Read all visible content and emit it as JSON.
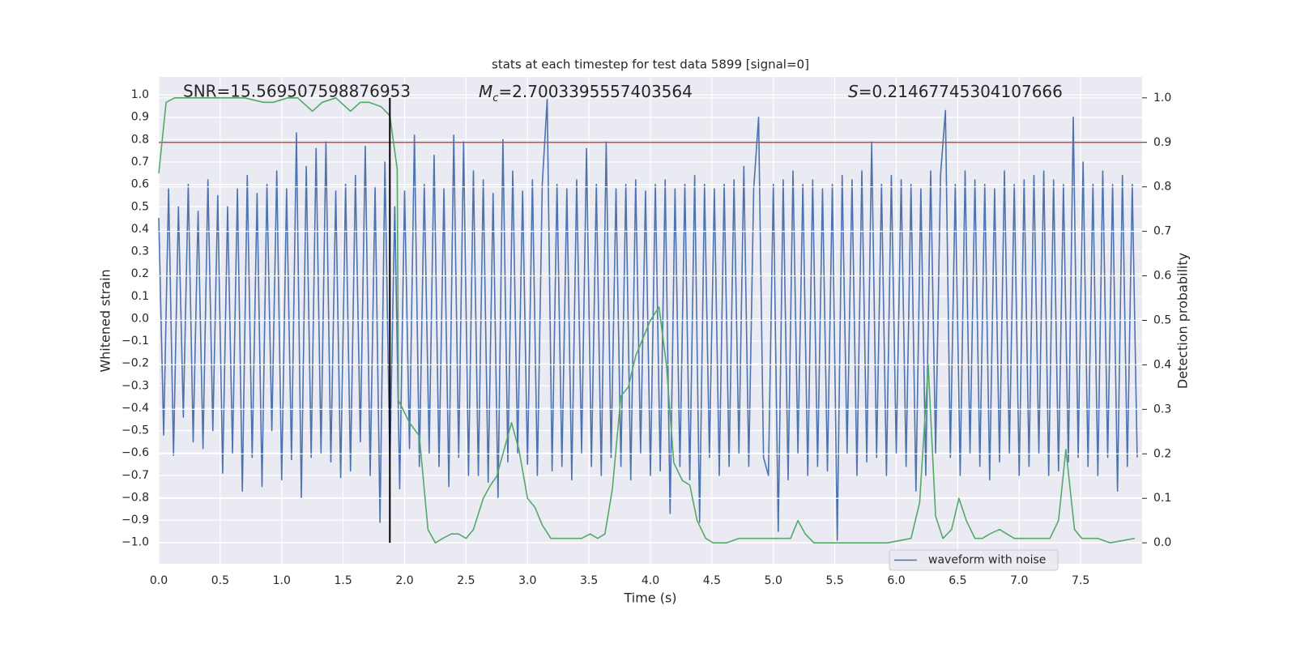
{
  "chart_data": {
    "type": "line",
    "title": "stats at each timestep for test data 5899 [signal=0]",
    "xlabel": "Time (s)",
    "ylabel": "Whitened strain",
    "y2label": "Detection probability",
    "annotations": [
      {
        "text": "SNR=15.569507598876953"
      },
      {
        "symbol": "M",
        "subscript": "c",
        "text": "=2.7003395557403564"
      },
      {
        "symbol": "S",
        "text": "=0.21467745304107666"
      }
    ],
    "xlim": [
      0,
      8.0
    ],
    "ylim": [
      -1.095,
      1.08
    ],
    "y2lim": [
      -0.047,
      1.047
    ],
    "xticks": [
      {
        "value": 0,
        "label": "0.0"
      },
      {
        "value": 0.5,
        "label": "0.5"
      },
      {
        "value": 1,
        "label": "1.0"
      },
      {
        "value": 1.5,
        "label": "1.5"
      },
      {
        "value": 2,
        "label": "2.0"
      },
      {
        "value": 2.5,
        "label": "2.5"
      },
      {
        "value": 3,
        "label": "3.0"
      },
      {
        "value": 3.5,
        "label": "3.5"
      },
      {
        "value": 4,
        "label": "4.0"
      },
      {
        "value": 4.5,
        "label": "4.5"
      },
      {
        "value": 5,
        "label": "5.0"
      },
      {
        "value": 5.5,
        "label": "5.5"
      },
      {
        "value": 6,
        "label": "6.0"
      },
      {
        "value": 6.5,
        "label": "6.5"
      },
      {
        "value": 7,
        "label": "7.0"
      },
      {
        "value": 7.5,
        "label": "7.5"
      }
    ],
    "yticks": [
      {
        "value": -1,
        "label": "−1.0"
      },
      {
        "value": -0.9,
        "label": "−0.9"
      },
      {
        "value": -0.8,
        "label": "−0.8"
      },
      {
        "value": -0.7,
        "label": "−0.7"
      },
      {
        "value": -0.6,
        "label": "−0.6"
      },
      {
        "value": -0.5,
        "label": "−0.5"
      },
      {
        "value": -0.4,
        "label": "−0.4"
      },
      {
        "value": -0.3,
        "label": "−0.3"
      },
      {
        "value": -0.2,
        "label": "−0.2"
      },
      {
        "value": -0.1,
        "label": "−0.1"
      },
      {
        "value": 0,
        "label": "0.0"
      },
      {
        "value": 0.1,
        "label": "0.1"
      },
      {
        "value": 0.2,
        "label": "0.2"
      },
      {
        "value": 0.3,
        "label": "0.3"
      },
      {
        "value": 0.4,
        "label": "0.4"
      },
      {
        "value": 0.5,
        "label": "0.5"
      },
      {
        "value": 0.6,
        "label": "0.6"
      },
      {
        "value": 0.7,
        "label": "0.7"
      },
      {
        "value": 0.8,
        "label": "0.8"
      },
      {
        "value": 0.9,
        "label": "0.9"
      },
      {
        "value": 1,
        "label": "1.0"
      }
    ],
    "y2ticks": [
      {
        "value": 0,
        "label": "0.0"
      },
      {
        "value": 0.1,
        "label": "0.1"
      },
      {
        "value": 0.2,
        "label": "0.2"
      },
      {
        "value": 0.3,
        "label": "0.3"
      },
      {
        "value": 0.4,
        "label": "0.4"
      },
      {
        "value": 0.5,
        "label": "0.5"
      },
      {
        "value": 0.6,
        "label": "0.6"
      },
      {
        "value": 0.7,
        "label": "0.7"
      },
      {
        "value": 0.8,
        "label": "0.8"
      },
      {
        "value": 0.9,
        "label": "0.9"
      },
      {
        "value": 1,
        "label": "1.0"
      }
    ],
    "grid": true,
    "legend": "lower right",
    "series": [
      {
        "name": "waveform with noise",
        "color": "#4c72b0",
        "x": [
          0,
          0.04,
          0.08,
          0.12,
          0.16,
          0.2,
          0.24,
          0.28,
          0.32,
          0.36,
          0.4,
          0.44,
          0.48,
          0.52,
          0.56,
          0.6,
          0.64,
          0.68,
          0.72,
          0.76,
          0.8,
          0.84,
          0.88,
          0.92,
          0.96,
          1,
          1.04,
          1.08,
          1.12,
          1.16,
          1.2,
          1.24,
          1.28,
          1.32,
          1.36,
          1.4,
          1.44,
          1.48,
          1.52,
          1.56,
          1.6,
          1.64,
          1.68,
          1.72,
          1.76,
          1.8,
          1.84,
          1.88,
          1.92,
          1.96,
          2,
          2.04,
          2.08,
          2.12,
          2.16,
          2.2,
          2.24,
          2.28,
          2.32,
          2.36,
          2.4,
          2.44,
          2.48,
          2.52,
          2.56,
          2.6,
          2.64,
          2.68,
          2.72,
          2.76,
          2.8,
          2.84,
          2.88,
          2.92,
          2.96,
          3,
          3.04,
          3.08,
          3.12,
          3.16,
          3.2,
          3.24,
          3.28,
          3.32,
          3.36,
          3.4,
          3.44,
          3.48,
          3.52,
          3.56,
          3.6,
          3.64,
          3.68,
          3.72,
          3.76,
          3.8,
          3.84,
          3.88,
          3.92,
          3.96,
          4,
          4.04,
          4.08,
          4.12,
          4.16,
          4.2,
          4.24,
          4.28,
          4.32,
          4.36,
          4.4,
          4.44,
          4.48,
          4.52,
          4.56,
          4.6,
          4.64,
          4.68,
          4.72,
          4.76,
          4.8,
          4.84,
          4.88,
          4.92,
          4.96,
          5,
          5.04,
          5.08,
          5.12,
          5.16,
          5.2,
          5.24,
          5.28,
          5.32,
          5.36,
          5.4,
          5.44,
          5.48,
          5.52,
          5.56,
          5.6,
          5.64,
          5.68,
          5.72,
          5.76,
          5.8,
          5.84,
          5.88,
          5.92,
          5.96,
          6,
          6.04,
          6.08,
          6.12,
          6.16,
          6.2,
          6.24,
          6.28,
          6.32,
          6.36,
          6.4,
          6.44,
          6.48,
          6.52,
          6.56,
          6.6,
          6.64,
          6.68,
          6.72,
          6.76,
          6.8,
          6.84,
          6.88,
          6.92,
          6.96,
          7,
          7.04,
          7.08,
          7.12,
          7.16,
          7.2,
          7.24,
          7.28,
          7.32,
          7.36,
          7.4,
          7.44,
          7.48,
          7.52,
          7.56,
          7.6,
          7.64,
          7.68,
          7.72,
          7.76,
          7.8,
          7.84,
          7.88,
          7.92,
          7.96
        ],
        "values": [
          0.45,
          -0.52,
          0.58,
          -0.61,
          0.5,
          -0.44,
          0.6,
          -0.55,
          0.48,
          -0.58,
          0.62,
          -0.5,
          0.55,
          -0.69,
          0.5,
          -0.6,
          0.58,
          -0.77,
          0.64,
          -0.62,
          0.56,
          -0.75,
          0.6,
          -0.5,
          0.66,
          -0.72,
          0.58,
          -0.63,
          0.83,
          -0.8,
          0.68,
          -0.62,
          0.76,
          -0.6,
          0.79,
          -0.64,
          0.57,
          -0.71,
          0.6,
          -0.68,
          0.64,
          -0.55,
          0.77,
          -0.7,
          0.59,
          -0.91,
          0.7,
          -0.65,
          0.5,
          -0.76,
          0.57,
          -0.58,
          0.82,
          -0.66,
          0.6,
          -0.6,
          0.73,
          -0.66,
          0.58,
          -0.75,
          0.82,
          -0.62,
          0.79,
          -0.7,
          0.66,
          -0.7,
          0.62,
          -0.73,
          0.56,
          -0.8,
          0.8,
          -0.64,
          0.66,
          -0.6,
          0.57,
          -0.65,
          0.62,
          -0.7,
          0.6,
          0.98,
          -0.68,
          0.6,
          -0.66,
          0.58,
          -0.72,
          0.62,
          -0.6,
          0.76,
          -0.66,
          0.6,
          -0.7,
          0.79,
          -0.62,
          0.58,
          -0.66,
          0.6,
          -0.72,
          0.62,
          -0.6,
          0.57,
          -0.7,
          0.6,
          -0.68,
          0.62,
          -0.87,
          0.58,
          -0.66,
          0.6,
          -0.72,
          0.64,
          -0.91,
          0.6,
          -0.62,
          0.58,
          -0.7,
          0.6,
          -0.66,
          0.62,
          -0.6,
          0.68,
          -0.66,
          0.58,
          0.9,
          -0.62,
          -0.7,
          0.6,
          -0.95,
          0.62,
          -0.72,
          0.66,
          -0.6,
          0.6,
          -0.7,
          0.62,
          -0.66,
          0.58,
          -0.68,
          0.6,
          -0.99,
          0.64,
          -0.6,
          0.62,
          -0.7,
          0.66,
          -0.64,
          0.79,
          -0.62,
          0.6,
          -0.7,
          0.64,
          -0.6,
          0.62,
          -0.66,
          0.6,
          -0.77,
          0.58,
          -0.7,
          0.66,
          -0.6,
          0.64,
          0.93,
          -0.62,
          0.6,
          -0.7,
          0.66,
          -0.6,
          0.62,
          -0.66,
          0.6,
          -0.72,
          0.58,
          -0.64,
          0.66,
          -0.6,
          0.6,
          -0.7,
          0.62,
          -0.66,
          0.64,
          -0.6,
          0.66,
          -0.7,
          0.62,
          -0.68,
          0.6,
          -0.64,
          0.9,
          -0.62,
          0.7,
          -0.66,
          0.6,
          -0.7,
          0.66,
          -0.62,
          0.6,
          -0.77,
          0.64,
          -0.66,
          0.6,
          -0.62
        ]
      },
      {
        "color": "#55a868",
        "axis": "y2",
        "x": [
          0,
          0.06,
          0.13,
          0.25,
          0.4,
          0.55,
          0.7,
          0.85,
          0.93,
          1.05,
          1.13,
          1.25,
          1.33,
          1.44,
          1.56,
          1.64,
          1.71,
          1.81,
          1.88,
          1.94,
          1.95,
          2.04,
          2.12,
          2.19,
          2.25,
          2.31,
          2.38,
          2.44,
          2.5,
          2.56,
          2.64,
          2.7,
          2.75,
          2.81,
          2.87,
          2.93,
          3,
          3.06,
          3.12,
          3.19,
          3.26,
          3.39,
          3.44,
          3.51,
          3.57,
          3.63,
          3.69,
          3.76,
          3.82,
          3.88,
          3.94,
          4,
          4.07,
          4.13,
          4.19,
          4.26,
          4.32,
          4.38,
          4.45,
          4.51,
          4.62,
          4.72,
          4.82,
          4.94,
          5.01,
          5.08,
          5.14,
          5.2,
          5.26,
          5.33,
          5.42,
          5.63,
          5.93,
          6.12,
          6.19,
          6.26,
          6.32,
          6.38,
          6.45,
          6.51,
          6.57,
          6.64,
          6.7,
          6.76,
          6.84,
          6.9,
          6.96,
          7.08,
          7.15,
          7.25,
          7.32,
          7.38,
          7.45,
          7.51,
          7.64,
          7.74,
          7.94
        ],
        "values": [
          0.83,
          0.99,
          1.0,
          1.0,
          1.0,
          1.0,
          1.0,
          0.99,
          0.99,
          1.0,
          1.0,
          0.97,
          0.99,
          1.0,
          0.97,
          0.99,
          0.99,
          0.98,
          0.96,
          0.84,
          0.32,
          0.27,
          0.24,
          0.03,
          0.0,
          0.01,
          0.02,
          0.02,
          0.01,
          0.03,
          0.1,
          0.13,
          0.15,
          0.21,
          0.27,
          0.21,
          0.1,
          0.08,
          0.04,
          0.01,
          0.01,
          0.01,
          0.01,
          0.02,
          0.01,
          0.02,
          0.12,
          0.33,
          0.35,
          0.42,
          0.46,
          0.5,
          0.53,
          0.4,
          0.18,
          0.14,
          0.13,
          0.05,
          0.01,
          0.0,
          0.0,
          0.01,
          0.01,
          0.01,
          0.01,
          0.01,
          0.01,
          0.05,
          0.02,
          0.0,
          0.0,
          0.0,
          0.0,
          0.01,
          0.09,
          0.4,
          0.06,
          0.01,
          0.03,
          0.1,
          0.05,
          0.01,
          0.01,
          0.02,
          0.03,
          0.02,
          0.01,
          0.01,
          0.01,
          0.01,
          0.05,
          0.21,
          0.03,
          0.01,
          0.01,
          0.0,
          0.01
        ]
      }
    ],
    "hlines": [
      {
        "value": 0.9,
        "axis": "y2",
        "color": "#c44e52"
      }
    ],
    "vlines": [
      {
        "value": 1.88,
        "color": "#000000"
      }
    ]
  }
}
